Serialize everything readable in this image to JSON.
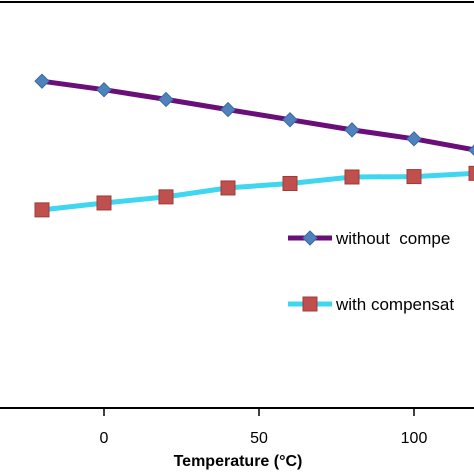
{
  "chart_data": {
    "type": "line",
    "xlabel": "Temperature (°C)",
    "ylabel": "",
    "x": [
      -20,
      0,
      20,
      40,
      60,
      80,
      100,
      120
    ],
    "xlim": [
      -34,
      120
    ],
    "ylim": [
      0,
      100
    ],
    "x_ticks": [
      {
        "value": 0,
        "label": "0"
      },
      {
        "value": 50,
        "label": "50"
      },
      {
        "value": 100,
        "label": "100"
      }
    ],
    "series": [
      {
        "name": "without  compe",
        "color": "#6a0f7a",
        "marker": "diamond",
        "marker_color": "#4f81bd",
        "values": [
          80.5,
          78.4,
          76.0,
          73.5,
          71.0,
          68.5,
          66.3,
          63.5
        ]
      },
      {
        "name": "with compensat",
        "color": "#3fd6f0",
        "marker": "square",
        "marker_color": "#c0504d",
        "values": [
          48.8,
          50.5,
          52.0,
          54.2,
          55.3,
          56.9,
          57.0,
          57.8
        ]
      }
    ],
    "legend_position": "right",
    "grid": false
  }
}
